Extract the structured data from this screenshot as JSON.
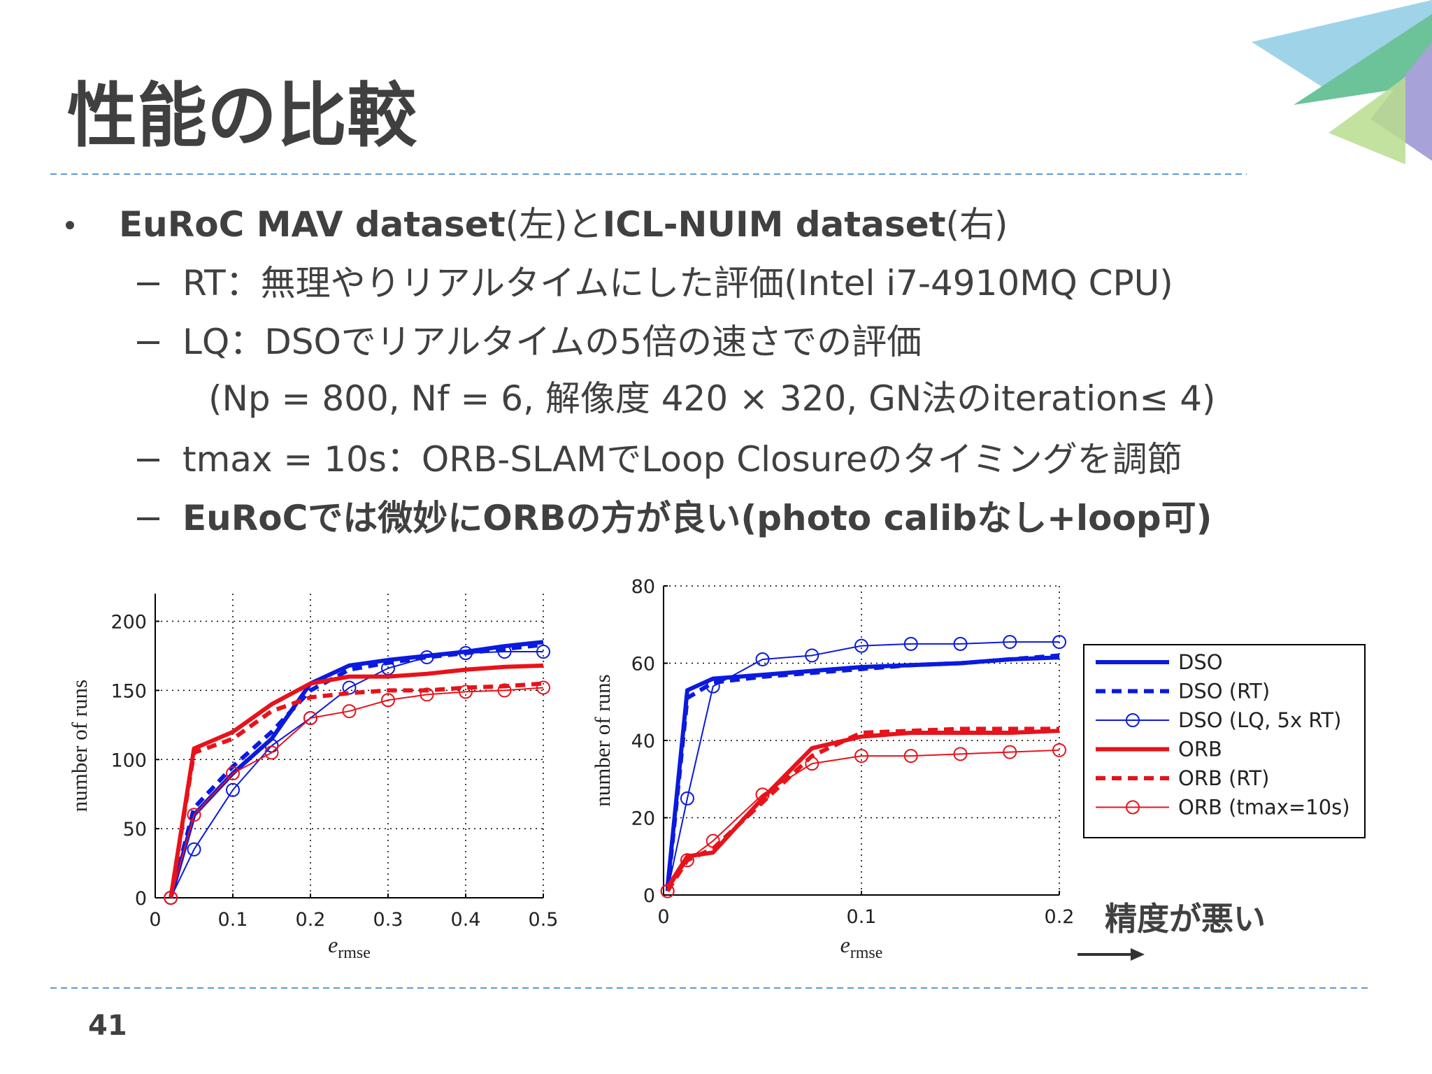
{
  "slide": {
    "title": "性能の比較",
    "page_number": "41",
    "bullets": [
      {
        "segments": [
          {
            "text": "EuRoC MAV dataset",
            "bold": true
          },
          {
            "text": "(左)と",
            "bold": false
          },
          {
            "text": "ICL-NUIM dataset",
            "bold": true
          },
          {
            "text": "(右)",
            "bold": false
          }
        ],
        "sub": [
          {
            "segments": [
              {
                "text": "RT：無理やりリアルタイムにした評価(Intel i7-4910MQ CPU)",
                "bold": false
              }
            ]
          },
          {
            "segments": [
              {
                "text": "LQ：DSOでリアルタイムの5倍の速さでの評価",
                "bold": false
              }
            ],
            "note": [
              {
                "text": "(Np = 800, Nf = 6,  解像度 420 × 320, GN法のiteration≤ 4)",
                "bold": false
              }
            ]
          },
          {
            "segments": [
              {
                "text": "tmax = 10s",
                "bold": false
              },
              {
                "text": "：ORB-SLAMでLoop Closureのタイミングを調節",
                "bold": false
              }
            ]
          },
          {
            "segments": [
              {
                "text": "EuRoCでは微妙にORBの方が良い(photo calibなし+loop可)",
                "bold": true
              }
            ]
          }
        ]
      }
    ],
    "annotation": "精度が悪い"
  },
  "chart_data": [
    {
      "type": "line",
      "legend": false,
      "grid": true,
      "y_label": "number of runs",
      "x_label": {
        "base": "e",
        "sub": "rmse"
      },
      "xlim": [
        0,
        0.5
      ],
      "ylim": [
        0,
        220
      ],
      "xticks": [
        0,
        0.1,
        0.2,
        0.3,
        0.4,
        0.5
      ],
      "yticks": [
        0,
        50,
        100,
        150,
        200
      ],
      "x": [
        0.02,
        0.05,
        0.1,
        0.15,
        0.2,
        0.25,
        0.3,
        0.35,
        0.4,
        0.45,
        0.5
      ],
      "series": [
        {
          "color": "#0a1adf",
          "width": 6,
          "dash": false,
          "marker": false,
          "values": [
            0,
            60,
            90,
            115,
            155,
            168,
            172,
            175,
            178,
            182,
            185
          ]
        },
        {
          "color": "#0a1adf",
          "width": 6,
          "dash": true,
          "marker": false,
          "values": [
            0,
            65,
            95,
            120,
            150,
            165,
            170,
            174,
            177,
            180,
            183
          ]
        },
        {
          "color": "#0a1adf",
          "width": 2,
          "dash": false,
          "marker": true,
          "values": [
            0,
            35,
            78,
            110,
            130,
            152,
            166,
            174,
            177,
            178,
            178
          ]
        },
        {
          "color": "#e8121a",
          "width": 6,
          "dash": false,
          "marker": false,
          "values": [
            0,
            108,
            120,
            140,
            155,
            160,
            160,
            162,
            165,
            167,
            168
          ]
        },
        {
          "color": "#e8121a",
          "width": 6,
          "dash": true,
          "marker": false,
          "values": [
            0,
            105,
            115,
            135,
            145,
            148,
            150,
            150,
            152,
            153,
            155
          ]
        },
        {
          "color": "#e8121a",
          "width": 2,
          "dash": false,
          "marker": true,
          "values": [
            0,
            60,
            90,
            105,
            130,
            135,
            143,
            147,
            149,
            150,
            152
          ]
        }
      ]
    },
    {
      "type": "line",
      "legend": true,
      "grid": true,
      "y_label": "number of runs",
      "x_label": {
        "base": "e",
        "sub": "rmse"
      },
      "xlim": [
        0,
        0.2
      ],
      "ylim": [
        0,
        80
      ],
      "xticks": [
        0,
        0.1,
        0.2
      ],
      "yticks": [
        0,
        20,
        40,
        60,
        80
      ],
      "x": [
        0.002,
        0.012,
        0.025,
        0.05,
        0.075,
        0.1,
        0.125,
        0.15,
        0.175,
        0.2
      ],
      "series": [
        {
          "name": "DSO",
          "color": "#0a1adf",
          "width": 6,
          "dash": false,
          "marker": false,
          "values": [
            2,
            53,
            56,
            57,
            58,
            59,
            59.5,
            60,
            61,
            61.5
          ]
        },
        {
          "name": "DSO (RT)",
          "color": "#0a1adf",
          "width": 6,
          "dash": true,
          "marker": false,
          "values": [
            1,
            51,
            55,
            56.5,
            57.5,
            58.5,
            59.5,
            60,
            61,
            62
          ]
        },
        {
          "name": "DSO (LQ, 5x RT)",
          "color": "#0a1adf",
          "width": 2,
          "dash": false,
          "marker": true,
          "values": [
            1,
            25,
            54,
            61,
            62,
            64.5,
            65,
            65,
            65.5,
            65.5
          ]
        },
        {
          "name": "ORB",
          "color": "#e8121a",
          "width": 6,
          "dash": false,
          "marker": false,
          "values": [
            2,
            10,
            11,
            25,
            38,
            41,
            42,
            42,
            42,
            42.5
          ]
        },
        {
          "name": "ORB (RT)",
          "color": "#e8121a",
          "width": 6,
          "dash": true,
          "marker": false,
          "values": [
            1,
            9,
            12,
            24,
            36,
            42,
            42.5,
            43,
            43,
            43
          ]
        },
        {
          "name": "ORB (tmax=10s)",
          "color": "#e8121a",
          "width": 2,
          "dash": false,
          "marker": true,
          "values": [
            1,
            9,
            14,
            26,
            34,
            36,
            36,
            36.5,
            37,
            37.5
          ]
        }
      ]
    }
  ]
}
